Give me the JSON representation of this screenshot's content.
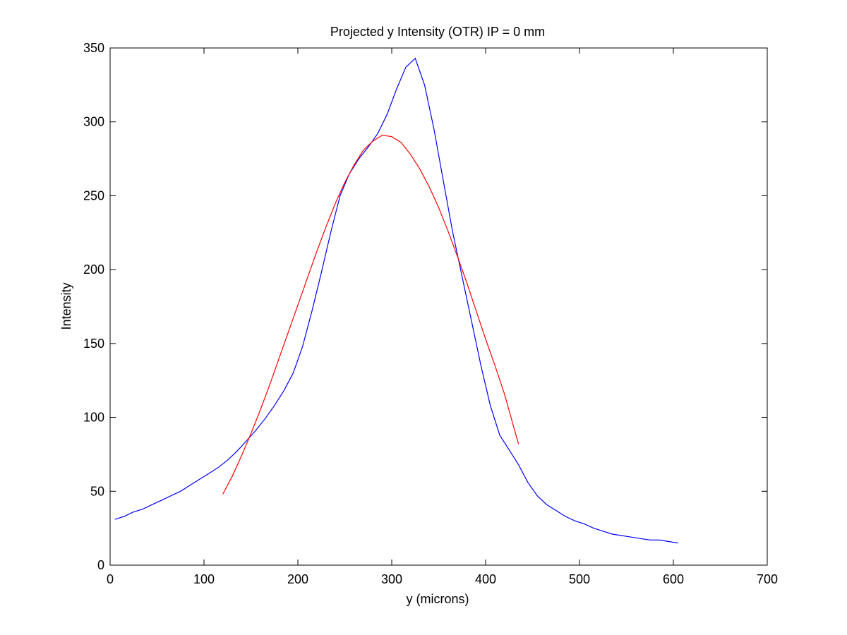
{
  "chart_data": {
    "type": "line",
    "title": "Projected y Intensity (OTR) IP = 0 mm",
    "xlabel": "y (microns)",
    "ylabel": "Intensity",
    "xlim": [
      0,
      700
    ],
    "ylim": [
      0,
      350
    ],
    "xticks": [
      0,
      100,
      200,
      300,
      400,
      500,
      600,
      700
    ],
    "yticks": [
      0,
      50,
      100,
      150,
      200,
      250,
      300,
      350
    ],
    "grid": false,
    "legend": "none",
    "series": [
      {
        "color": "#0000ff",
        "x": [
          5,
          15,
          25,
          35,
          45,
          55,
          65,
          75,
          85,
          95,
          105,
          115,
          125,
          135,
          145,
          155,
          165,
          175,
          185,
          195,
          205,
          215,
          225,
          235,
          245,
          255,
          265,
          275,
          285,
          295,
          305,
          315,
          325,
          335,
          345,
          355,
          365,
          375,
          385,
          395,
          405,
          415,
          425,
          435,
          445,
          455,
          465,
          475,
          485,
          495,
          505,
          515,
          525,
          535,
          545,
          555,
          565,
          575,
          585,
          595,
          605
        ],
        "y": [
          31,
          33,
          36,
          38,
          41,
          44,
          47,
          50,
          54,
          58,
          62,
          66,
          71,
          77,
          84,
          91,
          99,
          108,
          118,
          130,
          148,
          172,
          198,
          225,
          250,
          265,
          275,
          283,
          292,
          305,
          322,
          337,
          343,
          325,
          295,
          260,
          225,
          195,
          165,
          135,
          108,
          88,
          78,
          68,
          56,
          47,
          41,
          37,
          33,
          30,
          28,
          25,
          23,
          21,
          20,
          19,
          18,
          17,
          17,
          16,
          15
        ]
      },
      {
        "color": "#ff0000",
        "x": [
          120,
          130,
          140,
          150,
          160,
          170,
          180,
          190,
          200,
          210,
          220,
          230,
          240,
          250,
          260,
          270,
          280,
          290,
          300,
          310,
          320,
          330,
          340,
          350,
          360,
          370,
          380,
          390,
          400,
          410,
          420,
          435
        ],
        "y": [
          48,
          60,
          74,
          89,
          105,
          122,
          140,
          158,
          176,
          194,
          212,
          229,
          245,
          259,
          271,
          281,
          287,
          291,
          290,
          286,
          278,
          268,
          256,
          242,
          226,
          209,
          191,
          172,
          153,
          135,
          116,
          82
        ]
      }
    ]
  }
}
